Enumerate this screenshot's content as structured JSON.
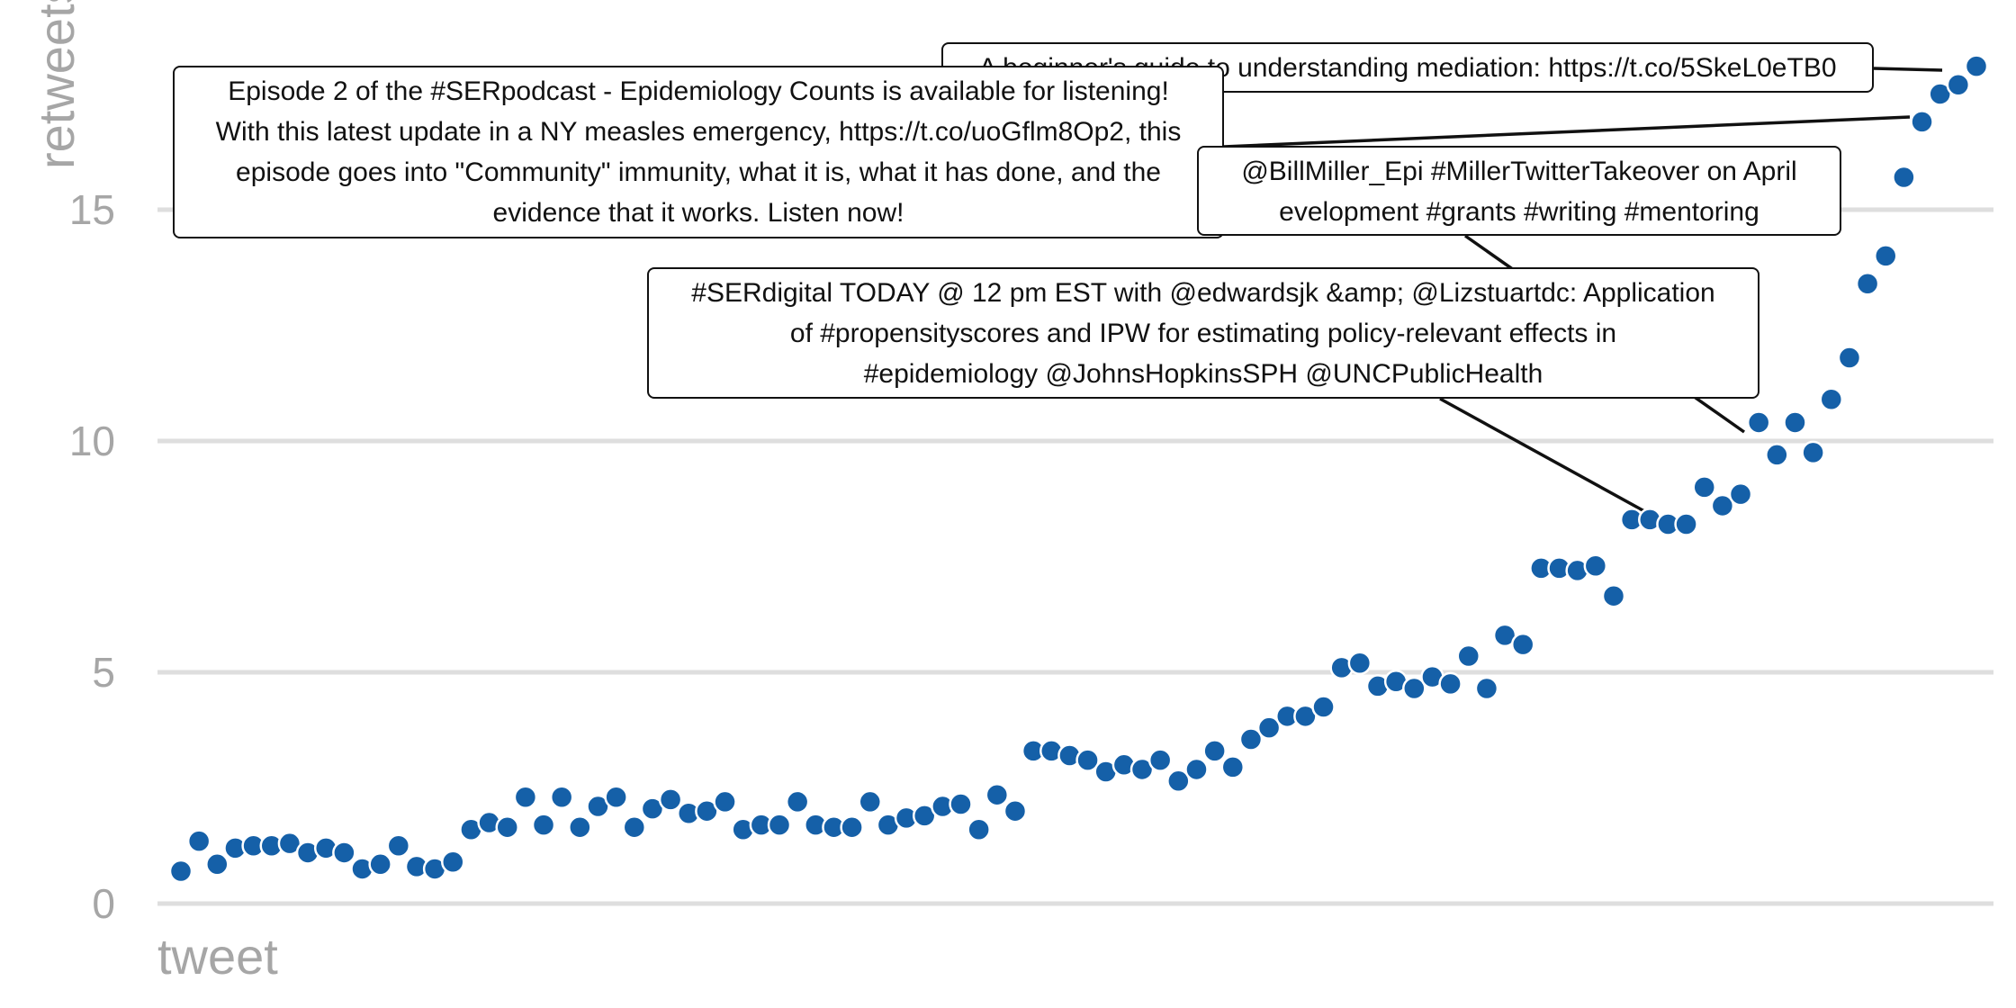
{
  "chart_data": {
    "type": "scatter",
    "xlabel": "tweet",
    "ylabel": "retweets",
    "ylim": [
      0,
      18.5
    ],
    "yticks": [
      0,
      5,
      10,
      15
    ],
    "grid": "horizontal",
    "point_color": "#1560a8",
    "values": [
      0.7,
      1.35,
      0.85,
      1.2,
      1.25,
      1.25,
      1.3,
      1.1,
      1.2,
      1.1,
      0.75,
      0.85,
      1.25,
      0.8,
      0.75,
      0.9,
      1.6,
      1.75,
      1.65,
      2.3,
      1.7,
      2.3,
      1.65,
      2.1,
      2.3,
      1.65,
      2.05,
      2.25,
      1.95,
      2.0,
      2.2,
      1.6,
      1.7,
      1.7,
      2.2,
      1.7,
      1.65,
      1.65,
      2.2,
      1.7,
      1.85,
      1.9,
      2.1,
      2.15,
      1.6,
      2.35,
      2.0,
      3.3,
      3.3,
      3.2,
      3.1,
      2.85,
      3.0,
      2.9,
      3.1,
      2.65,
      2.9,
      3.3,
      2.95,
      3.55,
      3.8,
      4.05,
      4.05,
      4.25,
      5.1,
      5.2,
      4.7,
      4.8,
      4.65,
      4.9,
      4.75,
      5.35,
      4.65,
      5.8,
      5.6,
      7.25,
      7.25,
      7.2,
      7.3,
      6.65,
      8.3,
      8.3,
      8.2,
      8.2,
      9.0,
      8.6,
      8.85,
      10.4,
      9.7,
      10.4,
      9.75,
      10.9,
      11.8,
      13.4,
      14.0,
      15.7,
      16.9,
      17.5,
      17.7,
      18.1
    ],
    "annotations": [
      {
        "point_index": 99,
        "lines": [
          "A beginner's guide to understanding mediation: https://t.co/5SkeL0eTB0"
        ]
      },
      {
        "point_index": 96,
        "lines": [
          "Episode 2 of the #SERpodcast - Epidemiology Counts is available for listening!",
          "With this latest update in a NY measles emergency, https://t.co/uoGflm8Op2, this",
          "episode goes into \"Community\" immunity, what it is, what it has done, and the",
          "evidence that it works. Listen now!"
        ]
      },
      {
        "point_index": 87,
        "lines": [
          "@BillMiller_Epi #MillerTwitterTakeover on April",
          "evelopment #grants #writing #mentoring"
        ]
      },
      {
        "point_index": 82,
        "lines": [
          "#SERdigital TODAY @ 12 pm EST with @edwardsjk &amp; @Lizstuartdc: Application",
          "of #propensityscores and IPW for estimating policy-relevant effects in",
          "#epidemiology @JohnsHopkinsSPH @UNCPublicHealth"
        ]
      }
    ]
  }
}
